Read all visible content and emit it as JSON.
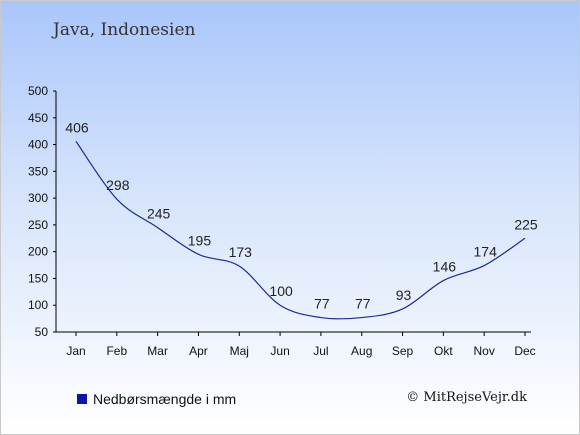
{
  "title": "Java, Indonesien",
  "legend": {
    "label": "Nedbørsmængde i mm",
    "color": "#0b16a8"
  },
  "credit": "© MitRejseVejr.dk",
  "colors": {
    "line": "#1a2b99",
    "axis": "#000000",
    "label": "#222222"
  },
  "chart_data": {
    "type": "line",
    "categories": [
      "Jan",
      "Feb",
      "Mar",
      "Apr",
      "Maj",
      "Jun",
      "Jul",
      "Aug",
      "Sep",
      "Okt",
      "Nov",
      "Dec"
    ],
    "series": [
      {
        "name": "Nedbørsmængde i mm",
        "values": [
          406,
          298,
          245,
          195,
          173,
          100,
          77,
          77,
          93,
          146,
          174,
          225
        ]
      }
    ],
    "yticks": [
      50,
      100,
      150,
      200,
      250,
      300,
      350,
      400,
      450,
      500
    ],
    "ylim": [
      50,
      500
    ],
    "grid": false,
    "legend_position": "bottom-left"
  }
}
